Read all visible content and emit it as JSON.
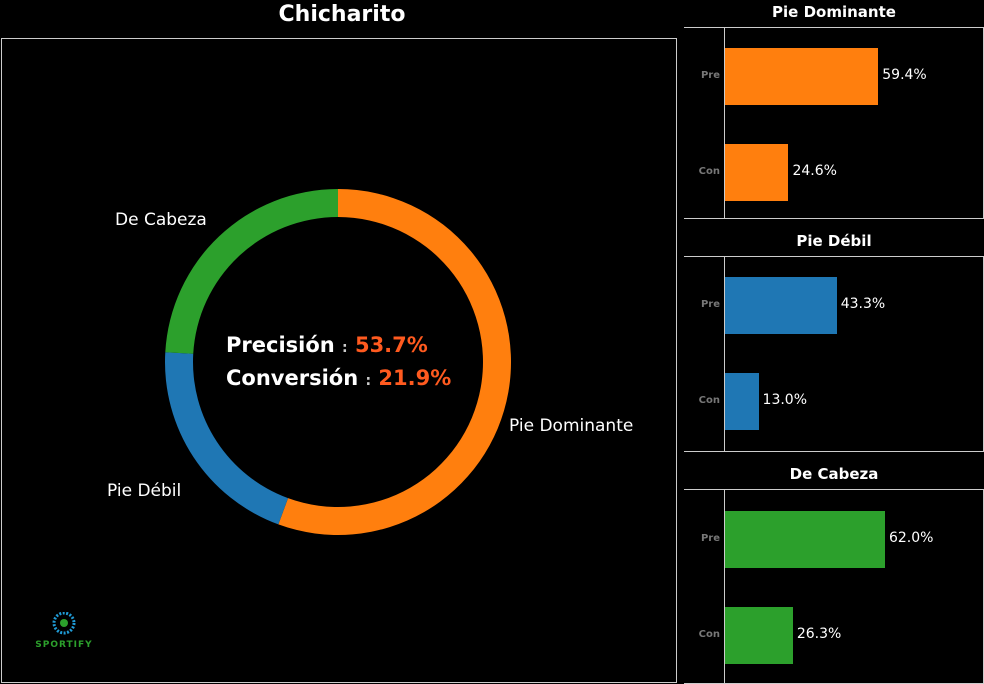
{
  "title": "Chicharito",
  "chart_data": [
    {
      "type": "pie",
      "subtype": "donut",
      "categories": [
        "Pie Dominante",
        "Pie Débil",
        "De Cabeza"
      ],
      "values": [
        55.6,
        20.3,
        24.1
      ],
      "colors": [
        "#ff7f0e",
        "#1f77b4",
        "#2ca02c"
      ],
      "center_text": {
        "precision_label": "Precisión",
        "precision_value": "53.7%",
        "conversion_label": "Conversión",
        "conversion_value": "21.9%",
        "separator": ":"
      }
    },
    {
      "type": "bar",
      "orientation": "horizontal",
      "title": "Pie Dominante",
      "categories": [
        "Pre",
        "Con"
      ],
      "values": [
        59.4,
        24.6
      ],
      "labels": [
        "59.4%",
        "24.6%"
      ],
      "color": "#ff7f0e",
      "xlim": [
        0,
        100
      ]
    },
    {
      "type": "bar",
      "orientation": "horizontal",
      "title": "Pie Débil",
      "categories": [
        "Pre",
        "Con"
      ],
      "values": [
        43.3,
        13.0
      ],
      "labels": [
        "43.3%",
        "13.0%"
      ],
      "color": "#1f77b4",
      "xlim": [
        0,
        100
      ]
    },
    {
      "type": "bar",
      "orientation": "horizontal",
      "title": "De Cabeza",
      "categories": [
        "Pre",
        "Con"
      ],
      "values": [
        62.0,
        26.3
      ],
      "labels": [
        "62.0%",
        "26.3%"
      ],
      "color": "#2ca02c",
      "xlim": [
        0,
        100
      ]
    }
  ],
  "logo": {
    "text": "SPORTIFY"
  }
}
